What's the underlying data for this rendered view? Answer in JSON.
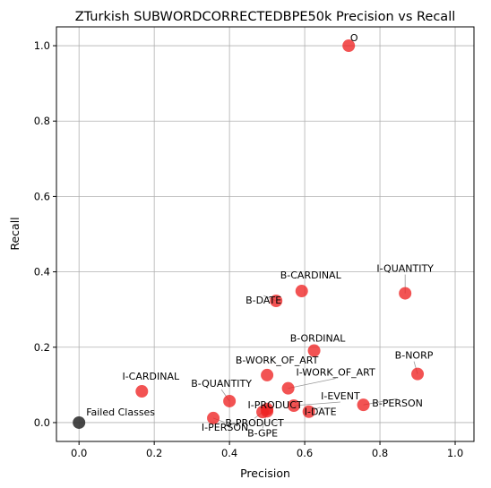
{
  "chart_data": {
    "type": "scatter",
    "title": "ZTurkish SUBWORDCORRECTEDBPE50k Precision vs Recall",
    "xlabel": "Precision",
    "ylabel": "Recall",
    "xlim": [
      -0.06,
      1.05
    ],
    "ylim": [
      -0.05,
      1.05
    ],
    "xticks": [
      "0.0",
      "0.2",
      "0.4",
      "0.6",
      "0.8",
      "1.0"
    ],
    "yticks": [
      "0.0",
      "0.2",
      "0.4",
      "0.6",
      "0.8",
      "1.0"
    ],
    "grid": true,
    "marker_color": "#ee2222",
    "failed_color": "#333333",
    "points": [
      {
        "label": "O",
        "x": 0.717,
        "y": 1.0
      },
      {
        "label": "B-CARDINAL",
        "x": 0.592,
        "y": 0.349
      },
      {
        "label": "I-QUANTITY",
        "x": 0.867,
        "y": 0.343
      },
      {
        "label": "B-DATE",
        "x": 0.524,
        "y": 0.323
      },
      {
        "label": "B-ORDINAL",
        "x": 0.625,
        "y": 0.191
      },
      {
        "label": "B-NORP",
        "x": 0.9,
        "y": 0.129
      },
      {
        "label": "B-WORK_OF_ART",
        "x": 0.5,
        "y": 0.126
      },
      {
        "label": "I-WORK_OF_ART",
        "x": 0.556,
        "y": 0.091
      },
      {
        "label": "I-CARDINAL",
        "x": 0.167,
        "y": 0.083
      },
      {
        "label": "B-QUANTITY",
        "x": 0.4,
        "y": 0.057
      },
      {
        "label": "I-EVENT",
        "x": 0.571,
        "y": 0.045
      },
      {
        "label": "B-PERSON",
        "x": 0.756,
        "y": 0.047
      },
      {
        "label": "I-PRODUCT",
        "x": 0.5,
        "y": 0.036
      },
      {
        "label": "I-DATE",
        "x": 0.611,
        "y": 0.029
      },
      {
        "label": "B-PRODUCT",
        "x": 0.488,
        "y": 0.028
      },
      {
        "label": "B-GPE",
        "x": 0.5,
        "y": 0.03
      },
      {
        "label": "I-PERSON",
        "x": 0.357,
        "y": 0.012
      }
    ],
    "failed": {
      "label": "Failed Classes",
      "x": 0.0,
      "y": 0.0
    }
  }
}
